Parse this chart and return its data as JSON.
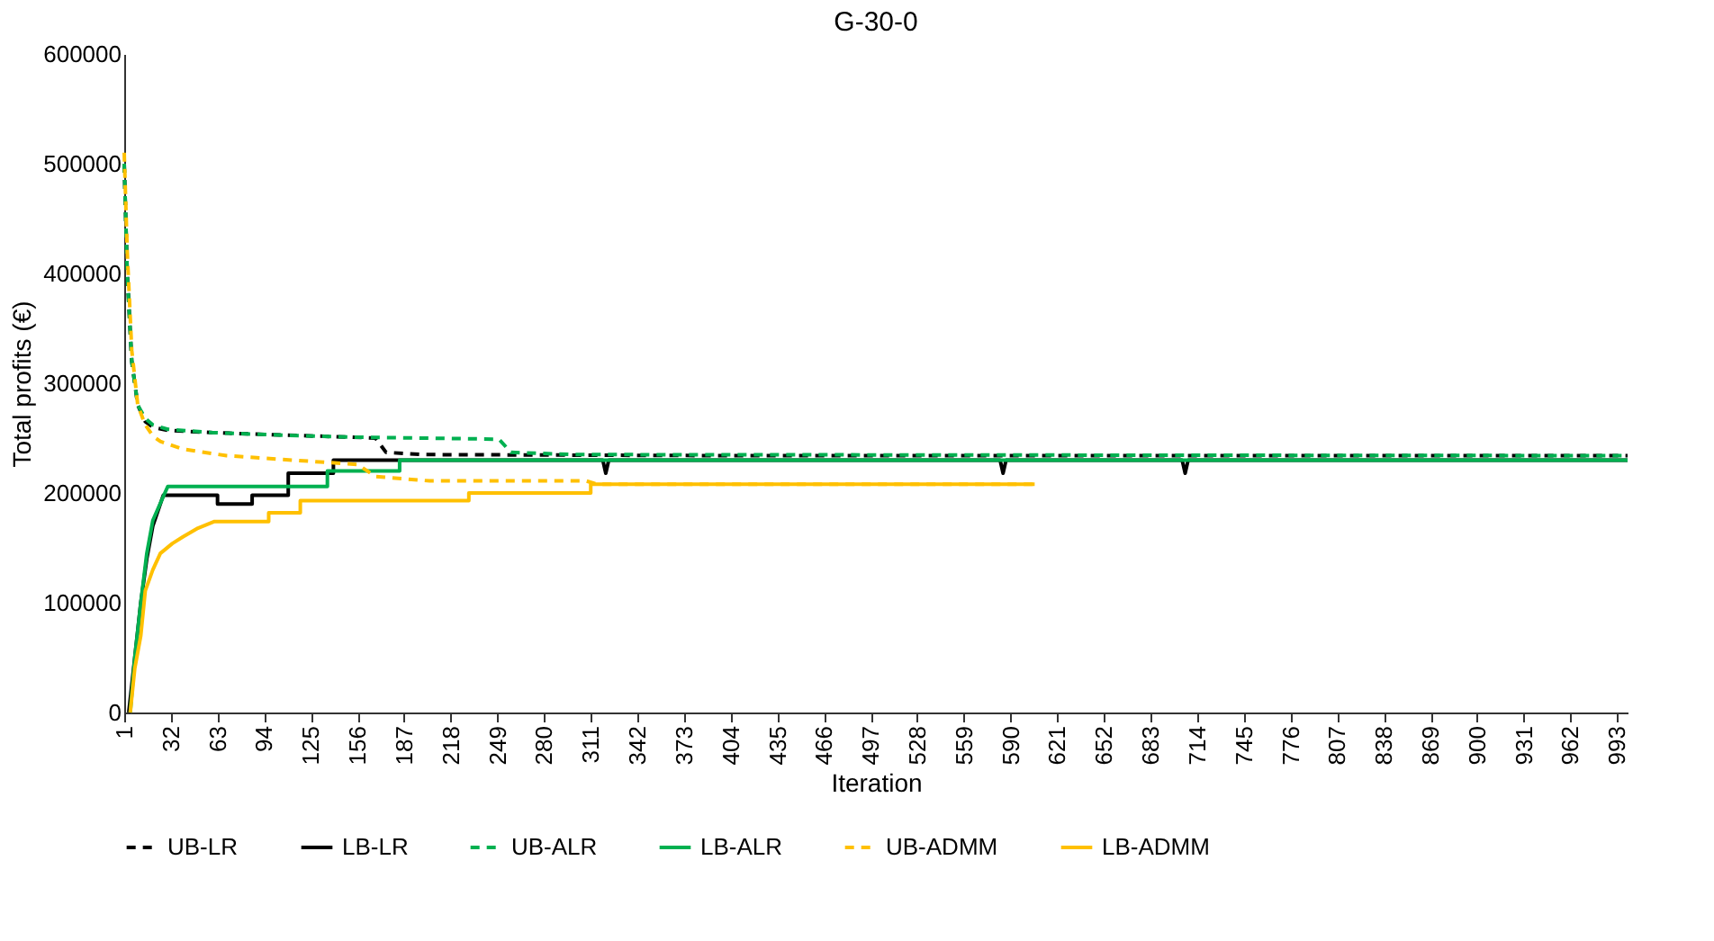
{
  "chart_data": {
    "type": "line",
    "title": "G-30-0",
    "xlabel": "Iteration",
    "ylabel": "Total profits (€)",
    "xlim": [
      1,
      1000
    ],
    "xticks": [
      1,
      32,
      63,
      94,
      125,
      156,
      187,
      218,
      249,
      280,
      311,
      342,
      373,
      404,
      435,
      466,
      497,
      528,
      559,
      590,
      621,
      652,
      683,
      714,
      745,
      776,
      807,
      838,
      869,
      900,
      931,
      962,
      993
    ],
    "ylim": [
      0,
      600000
    ],
    "yticks": [
      0,
      100000,
      200000,
      300000,
      400000,
      500000,
      600000
    ],
    "grid": false,
    "legend": "bottom",
    "series": [
      {
        "name": "UB-LR",
        "color": "#000000",
        "line_style": "dashed",
        "x": [
          1,
          3,
          6,
          10,
          15,
          20,
          30,
          60,
          100,
          150,
          168,
          175,
          200,
          400,
          1000
        ],
        "values": [
          500000,
          400000,
          320000,
          280000,
          265000,
          260000,
          257000,
          255000,
          253000,
          251000,
          250000,
          237000,
          235000,
          234000,
          234000
        ]
      },
      {
        "name": "LB-LR",
        "color": "#000000",
        "line_style": "solid",
        "x": [
          4,
          8,
          12,
          16,
          20,
          27,
          63,
          63,
          86,
          86,
          110,
          110,
          140,
          140,
          319,
          321,
          323,
          583,
          585,
          587,
          704,
          706,
          708,
          1000
        ],
        "values": [
          0,
          50000,
          100000,
          140000,
          170000,
          198000,
          198000,
          190000,
          190000,
          198000,
          198000,
          218000,
          218000,
          230000,
          230000,
          218000,
          230000,
          230000,
          218000,
          230000,
          230000,
          218000,
          230000,
          230000
        ]
      },
      {
        "name": "UB-ALR",
        "color": "#00b050",
        "line_style": "dashed",
        "x": [
          1,
          3,
          6,
          10,
          15,
          20,
          30,
          60,
          100,
          150,
          200,
          250,
          258,
          300,
          1000
        ],
        "values": [
          500000,
          400000,
          320000,
          280000,
          268000,
          262000,
          258000,
          255000,
          253000,
          251000,
          250000,
          249000,
          237000,
          235000,
          234000
        ]
      },
      {
        "name": "LB-ALR",
        "color": "#00b050",
        "line_style": "solid",
        "x": [
          5,
          8,
          12,
          16,
          20,
          28,
          30,
          136,
          136,
          184,
          184,
          1000
        ],
        "values": [
          0,
          50000,
          100000,
          145000,
          175000,
          200000,
          206000,
          206000,
          220000,
          220000,
          230000,
          230000
        ]
      },
      {
        "name": "UB-ADMM",
        "color": "#ffc000",
        "line_style": "dashed",
        "x": [
          1,
          3,
          6,
          10,
          15,
          20,
          25,
          40,
          69,
          156,
          168,
          204,
          308,
          315,
          606
        ],
        "values": [
          510000,
          420000,
          330000,
          280000,
          262000,
          252000,
          247000,
          240000,
          234000,
          226000,
          215000,
          211000,
          211000,
          208000,
          208000
        ]
      },
      {
        "name": "LB-ADMM",
        "color": "#ffc000",
        "line_style": "solid",
        "x": [
          5,
          8,
          12,
          15,
          20,
          25,
          33,
          40,
          50,
          61,
          97,
          97,
          118,
          118,
          230,
          230,
          311,
          311,
          606
        ],
        "values": [
          0,
          40000,
          70000,
          111000,
          130000,
          145000,
          154000,
          160000,
          168000,
          174000,
          174000,
          182000,
          182000,
          193000,
          193000,
          200000,
          200000,
          208000,
          208000
        ]
      }
    ]
  }
}
